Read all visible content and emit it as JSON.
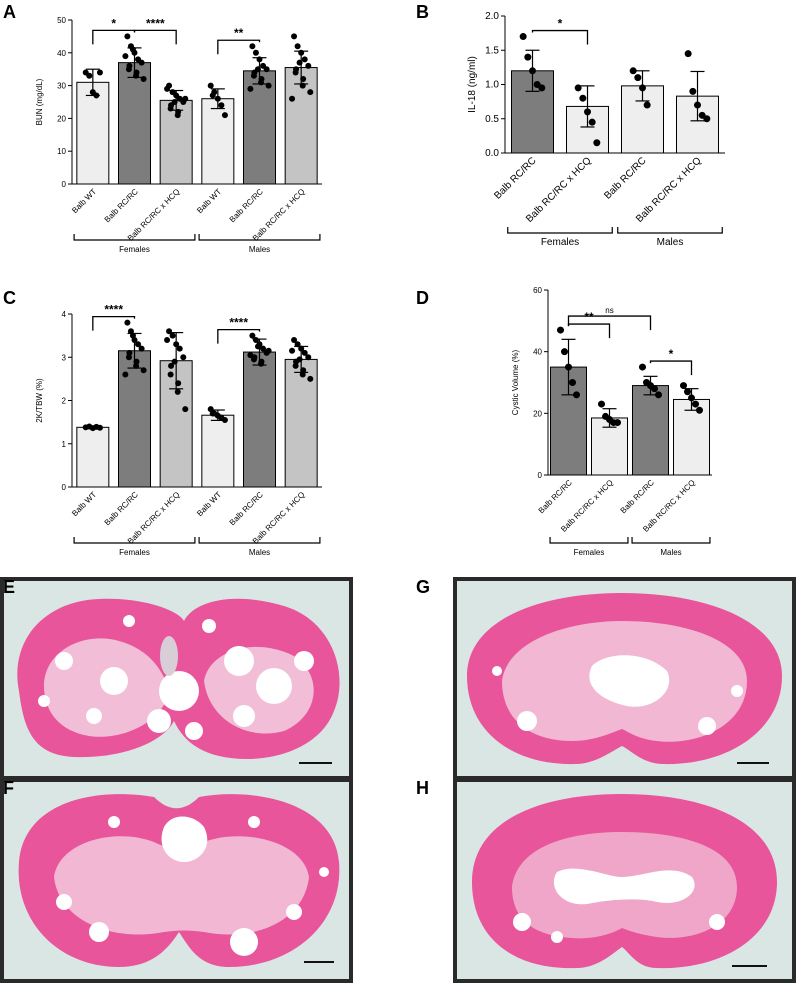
{
  "panels": {
    "A": {
      "letter": "A"
    },
    "B": {
      "letter": "B"
    },
    "C": {
      "letter": "C"
    },
    "D": {
      "letter": "D"
    },
    "E": {
      "letter": "E"
    },
    "F": {
      "letter": "F"
    },
    "G": {
      "letter": "G"
    },
    "H": {
      "letter": "H"
    }
  },
  "colors": {
    "wt": "#eeeeee",
    "rc": "#7d7d7d",
    "hcq": "#c4c4c4",
    "d_hcq": "#eeeeee",
    "tissue_pink": "#e8559a",
    "tissue_pale": "#f3c9dd",
    "slide_bg": "#d9e6e4"
  },
  "chart_data": [
    {
      "panel": "A",
      "type": "bar",
      "ylabel": "BUN (mg/dL)",
      "ylim": [
        0,
        50
      ],
      "yticks": [
        0,
        10,
        20,
        30,
        40,
        50
      ],
      "categories": [
        "Balb WT",
        "Balb RC/RC",
        "Balb RC/RC x HCQ",
        "Balb WT",
        "Balb RC/RC",
        "Balb RC/RC x HCQ"
      ],
      "groups": [
        {
          "label": "Females",
          "from": 0,
          "to": 2
        },
        {
          "label": "Males",
          "from": 3,
          "to": 5
        }
      ],
      "values": [
        31,
        37,
        25.5,
        26,
        34.5,
        35.5
      ],
      "errors": [
        4,
        4.5,
        3,
        3,
        4,
        5
      ],
      "fills": [
        "wt",
        "rc",
        "hcq",
        "wt",
        "rc",
        "hcq"
      ],
      "points": [
        [
          34,
          33,
          28,
          27,
          34
        ],
        [
          45,
          42,
          40,
          38,
          37,
          36,
          35,
          34,
          33,
          32,
          39,
          41
        ],
        [
          30,
          28,
          27,
          26,
          25,
          24,
          23,
          22,
          21,
          26,
          29,
          25
        ],
        [
          30,
          28,
          26,
          24,
          21,
          27
        ],
        [
          42,
          40,
          38,
          36,
          35,
          34,
          33,
          32,
          31,
          30,
          29,
          35
        ],
        [
          45,
          42,
          40,
          38,
          36,
          35,
          34,
          32,
          30,
          28,
          26,
          37
        ]
      ],
      "brackets": [
        {
          "from": 0,
          "to": 1,
          "label": "*"
        },
        {
          "from": 1,
          "to": 2,
          "label": "****"
        },
        {
          "from": 3,
          "to": 4,
          "label": "**"
        }
      ]
    },
    {
      "panel": "B",
      "type": "bar",
      "ylabel": "IL-18 (ng/ml)",
      "ylim": [
        0,
        2
      ],
      "yticks": [
        0,
        0.5,
        1,
        1.5,
        2
      ],
      "ytick_labels": [
        "0.0",
        "0.5",
        "1.0",
        "1.5",
        "2.0"
      ],
      "categories": [
        "Balb RC/RC",
        "Balb RC/RC x HCQ",
        "Balb RC/RC",
        "Balb RC/RC x HCQ"
      ],
      "groups": [
        {
          "label": "Females",
          "from": 0,
          "to": 1
        },
        {
          "label": "Males",
          "from": 2,
          "to": 3
        }
      ],
      "values": [
        1.2,
        0.68,
        0.98,
        0.83
      ],
      "errors": [
        0.3,
        0.3,
        0.22,
        0.36
      ],
      "fills": [
        "rc",
        "wt",
        "wt",
        "wt"
      ],
      "points": [
        [
          1.7,
          1.4,
          1.2,
          1.0,
          0.95
        ],
        [
          0.95,
          0.8,
          0.6,
          0.45,
          0.15
        ],
        [
          1.2,
          1.1,
          0.95,
          0.7
        ],
        [
          1.45,
          0.9,
          0.7,
          0.55,
          0.5
        ]
      ],
      "brackets": [
        {
          "from": 0,
          "to": 1,
          "label": "*"
        }
      ]
    },
    {
      "panel": "C",
      "type": "bar",
      "ylabel": "2K/TBW (%)",
      "ylim": [
        0,
        4
      ],
      "yticks": [
        0,
        1,
        2,
        3,
        4
      ],
      "categories": [
        "Balb WT",
        "Balb RC/RC",
        "Balb RC/RC x HCQ",
        "Balb WT",
        "Balb RC/RC",
        "Balb RC/RC x HCQ"
      ],
      "groups": [
        {
          "label": "Females",
          "from": 0,
          "to": 2
        },
        {
          "label": "Males",
          "from": 3,
          "to": 5
        }
      ],
      "values": [
        1.38,
        3.15,
        2.92,
        1.66,
        3.12,
        2.95
      ],
      "errors": [
        0.03,
        0.4,
        0.65,
        0.12,
        0.3,
        0.3
      ],
      "fills": [
        "wt",
        "rc",
        "hcq",
        "wt",
        "rc",
        "hcq"
      ],
      "points": [
        [
          1.38,
          1.4,
          1.36,
          1.39,
          1.37
        ],
        [
          3.8,
          3.6,
          3.4,
          3.3,
          3.2,
          3.1,
          3.0,
          2.9,
          2.8,
          2.7,
          2.6,
          3.5
        ],
        [
          3.6,
          3.5,
          3.3,
          3.2,
          3.0,
          2.8,
          2.6,
          2.4,
          2.2,
          1.8,
          3.4,
          2.9
        ],
        [
          1.8,
          1.7,
          1.65,
          1.6,
          1.55,
          1.7
        ],
        [
          3.5,
          3.4,
          3.3,
          3.2,
          3.1,
          3.0,
          2.95,
          2.9,
          2.85,
          3.15,
          3.05,
          3.25
        ],
        [
          3.4,
          3.3,
          3.2,
          3.1,
          3.0,
          2.9,
          2.8,
          2.7,
          2.6,
          2.5,
          3.15,
          2.95
        ]
      ],
      "brackets": [
        {
          "from": 0,
          "to": 1,
          "label": "****"
        },
        {
          "from": 3,
          "to": 4,
          "label": "****"
        }
      ]
    },
    {
      "panel": "D",
      "type": "bar",
      "ylabel": "Cystic Volume (%)",
      "ylim": [
        0,
        60
      ],
      "yticks": [
        0,
        20,
        40,
        60
      ],
      "categories": [
        "Balb RC/RC",
        "Balb RC/RC x HCQ",
        "Balb RC/RC",
        "Balb RC/RC x HCQ"
      ],
      "groups": [
        {
          "label": "Females",
          "from": 0,
          "to": 1
        },
        {
          "label": "Males",
          "from": 2,
          "to": 3
        }
      ],
      "values": [
        35,
        18.5,
        29,
        24.5
      ],
      "errors": [
        9,
        3,
        3,
        3.5
      ],
      "fills": [
        "rc",
        "wt",
        "rc",
        "wt"
      ],
      "points": [
        [
          47,
          40,
          35,
          30,
          26
        ],
        [
          23,
          19,
          18,
          17,
          17
        ],
        [
          35,
          30,
          29,
          28,
          26
        ],
        [
          29,
          27,
          25,
          23,
          21
        ]
      ],
      "brackets": [
        {
          "from": 0,
          "to": 1,
          "label": "**"
        },
        {
          "from": 0,
          "to": 2,
          "label": "ns"
        },
        {
          "from": 2,
          "to": 3,
          "label": "*"
        }
      ]
    }
  ]
}
